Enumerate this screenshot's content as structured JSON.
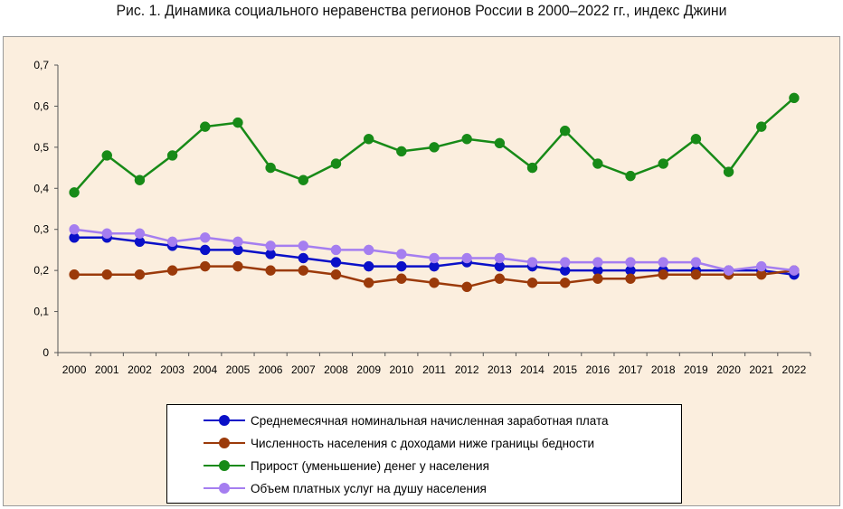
{
  "title": "Рис. 1. Динамика социального неравенства регионов России в 2000–2022 гг., индекс Джини",
  "chart_data": {
    "type": "line",
    "title": "Рис. 1. Динамика социального неравенства регионов России в 2000–2022 гг., индекс Джини",
    "x": [
      "2000",
      "2001",
      "2002",
      "2003",
      "2004",
      "2005",
      "2006",
      "2007",
      "2008",
      "2009",
      "2010",
      "2011",
      "2012",
      "2013",
      "2014",
      "2015",
      "2016",
      "2017",
      "2018",
      "2019",
      "2020",
      "2021",
      "2022"
    ],
    "y_ticks": [
      "0",
      "0,1",
      "0,2",
      "0,3",
      "0,4",
      "0,5",
      "0,6",
      "0,7"
    ],
    "ylim": [
      0,
      0.7
    ],
    "grid": false,
    "legend_position": "bottom",
    "series": [
      {
        "name": "Среднемесячная номинальная начисленная заработная плата",
        "color": "#0a10c8",
        "values": [
          0.28,
          0.28,
          0.27,
          0.26,
          0.25,
          0.25,
          0.24,
          0.23,
          0.22,
          0.21,
          0.21,
          0.21,
          0.22,
          0.21,
          0.21,
          0.2,
          0.2,
          0.2,
          0.2,
          0.2,
          0.2,
          0.2,
          0.19
        ]
      },
      {
        "name": "Численность населения с доходами ниже границы бедности",
        "color": "#9b3a0a",
        "values": [
          0.19,
          0.19,
          0.19,
          0.2,
          0.21,
          0.21,
          0.2,
          0.2,
          0.19,
          0.17,
          0.18,
          0.17,
          0.16,
          0.18,
          0.17,
          0.17,
          0.18,
          0.18,
          0.19,
          0.19,
          0.19,
          0.19,
          0.2
        ]
      },
      {
        "name": "Прирост (уменьшение) денег у  населения",
        "color": "#178a17",
        "values": [
          0.39,
          0.48,
          0.42,
          0.48,
          0.55,
          0.56,
          0.45,
          0.42,
          0.46,
          0.52,
          0.49,
          0.5,
          0.52,
          0.51,
          0.45,
          0.54,
          0.46,
          0.43,
          0.46,
          0.52,
          0.44,
          0.55,
          0.62
        ]
      },
      {
        "name": "Объем платных услуг на душу населения",
        "color": "#a57ef0",
        "values": [
          0.3,
          0.29,
          0.29,
          0.27,
          0.28,
          0.27,
          0.26,
          0.26,
          0.25,
          0.25,
          0.24,
          0.23,
          0.23,
          0.23,
          0.22,
          0.22,
          0.22,
          0.22,
          0.22,
          0.22,
          0.2,
          0.21,
          0.2
        ]
      }
    ]
  }
}
